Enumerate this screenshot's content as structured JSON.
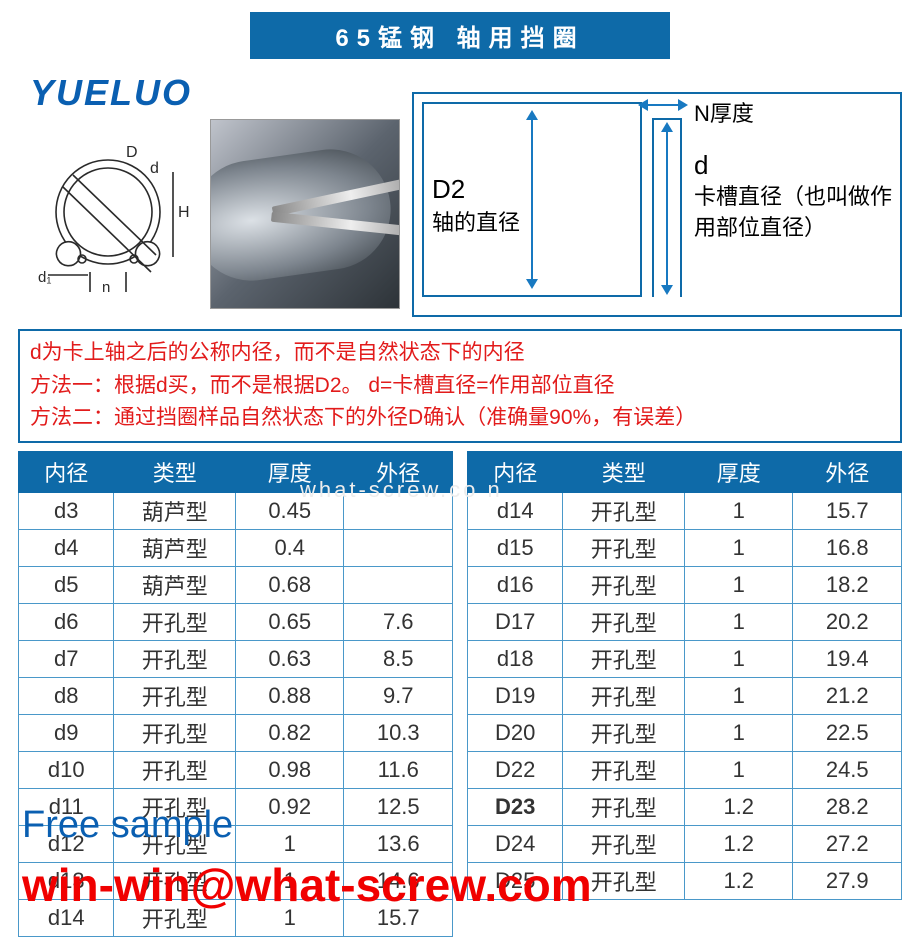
{
  "colors": {
    "header_bg": "#0e6aa8",
    "header_fg": "#ffffff",
    "brand": "#0a5fb1",
    "diagram_border": "#0e6aa8",
    "arrow": "#1879c1",
    "dia_text": "#2a2a2a",
    "info_border": "#0e6aa8",
    "info_text": "#e21b1b",
    "th_bg": "#0e6aa8",
    "th_fg": "#ffffff",
    "td_border": "#4a98c9",
    "overlay1": "#0a5fb1",
    "overlay2": "#f00000",
    "watermark": "#ededed",
    "tech_line": "#2a2a2a"
  },
  "title": "65锰钢 轴用挡圈",
  "brand": "YUELUO",
  "diagram": {
    "d2_label": "D2",
    "d2_desc": "轴的直径",
    "n_label": "N厚度",
    "d_label": "d",
    "d_desc": "卡槽直径（也叫做作用部位直径）"
  },
  "tech_labels": {
    "D": "D",
    "d": "d",
    "H": "H",
    "d1": "d₁",
    "n": "n"
  },
  "info": {
    "line1": "d为卡上轴之后的公称内径，而不是自然状态下的内径",
    "line2": "方法一：根据d买，而不是根据D2。 d=卡槽直径=作用部位直径",
    "line3": "方法二：通过挡圈样品自然状态下的外径D确认（准确量90%，有误差）"
  },
  "table": {
    "headers": [
      "内径",
      "类型",
      "厚度",
      "外径"
    ],
    "col_widths": [
      "22%",
      "28%",
      "25%",
      "25%"
    ],
    "left": [
      [
        "d3",
        "葫芦型",
        "0.45",
        ""
      ],
      [
        "d4",
        "葫芦型",
        "0.4",
        ""
      ],
      [
        "d5",
        "葫芦型",
        "0.68",
        ""
      ],
      [
        "d6",
        "开孔型",
        "0.65",
        "7.6"
      ],
      [
        "d7",
        "开孔型",
        "0.63",
        "8.5"
      ],
      [
        "d8",
        "开孔型",
        "0.88",
        "9.7"
      ],
      [
        "d9",
        "开孔型",
        "0.82",
        "10.3"
      ],
      [
        "d10",
        "开孔型",
        "0.98",
        "11.6"
      ],
      [
        "d11",
        "开孔型",
        "0.92",
        "12.5"
      ],
      [
        "d12",
        "开孔型",
        "1",
        "13.6"
      ],
      [
        "d13",
        "开孔型",
        "1",
        "14.6"
      ],
      [
        "d14",
        "开孔型",
        "1",
        "15.7"
      ]
    ],
    "right": [
      [
        "d14",
        "开孔型",
        "1",
        "15.7"
      ],
      [
        "d15",
        "开孔型",
        "1",
        "16.8"
      ],
      [
        "d16",
        "开孔型",
        "1",
        "18.2"
      ],
      [
        "D17",
        "开孔型",
        "1",
        "20.2"
      ],
      [
        "d18",
        "开孔型",
        "1",
        "19.4"
      ],
      [
        "D19",
        "开孔型",
        "1",
        "21.2"
      ],
      [
        "D20",
        "开孔型",
        "1",
        "22.5"
      ],
      [
        "D22",
        "开孔型",
        "1",
        "24.5"
      ],
      [
        "D23",
        "开孔型",
        "1.2",
        "28.2"
      ],
      [
        "D24",
        "开孔型",
        "1.2",
        "27.2"
      ],
      [
        "D25",
        "开孔型",
        "1.2",
        "27.9"
      ]
    ],
    "bold_cells": [
      "D23"
    ]
  },
  "overlays": {
    "free_sample": "Free sample",
    "email": "win-win@what-screw.com",
    "watermark": "what-screw.co n"
  }
}
